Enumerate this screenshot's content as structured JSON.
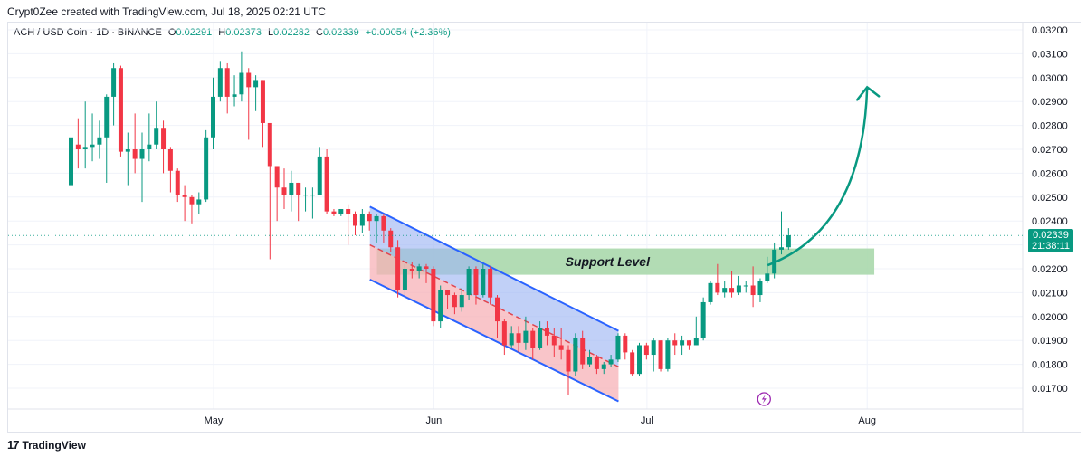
{
  "header": {
    "credit": "Crypt0Zee created with TradingView.com, Jul 18, 2025 02:21 UTC"
  },
  "legend": {
    "symbol": "ACH / USD Coin · 1D · BINANCE",
    "o_label": "O",
    "o_value": "0.02291",
    "h_label": "H",
    "h_value": "0.02373",
    "l_label": "L",
    "l_value": "0.02282",
    "c_label": "C",
    "c_value": "0.02339",
    "change": "+0.00054 (+2.36%)"
  },
  "price_badge": {
    "price": "0.02339",
    "countdown": "21:38:11"
  },
  "annotation": {
    "support_label": "Support Level"
  },
  "footer": {
    "brand": "TradingView"
  },
  "colors": {
    "up": "#089981",
    "down": "#f23645",
    "support_zone": "#a5d6a7",
    "channel_upper": "#9fb7f3",
    "channel_lower": "#f7b2b7",
    "channel_line": "#2962ff",
    "arrow": "#089981",
    "lightning": "#9c27b0"
  },
  "chart_data": {
    "type": "candlestick",
    "symbol": "ACH / USD Coin",
    "timeframe": "1D",
    "exchange": "BINANCE",
    "ylim": [
      0.0164,
      0.0322
    ],
    "y_ticks": [
      "0.03200",
      "0.03100",
      "0.03000",
      "0.02900",
      "0.02800",
      "0.02700",
      "0.02600",
      "0.02500",
      "0.02400",
      "0.02300",
      "0.02200",
      "0.02100",
      "0.02000",
      "0.01900",
      "0.01800",
      "0.01700"
    ],
    "x_ticks": [
      {
        "label": "May",
        "date": "2025-05-01"
      },
      {
        "label": "Jun",
        "date": "2025-06-01"
      },
      {
        "label": "Jul",
        "date": "2025-07-01"
      },
      {
        "label": "Aug",
        "date": "2025-08-01"
      }
    ],
    "first_date": "2025-04-11",
    "candles": [
      [
        0.0255,
        0.0275,
        0.0306,
        0.0255
      ],
      [
        0.0272,
        0.027,
        0.0283,
        0.0262
      ],
      [
        0.027,
        0.0271,
        0.029,
        0.0262
      ],
      [
        0.0271,
        0.0272,
        0.0285,
        0.0265
      ],
      [
        0.0272,
        0.0275,
        0.0282,
        0.0266
      ],
      [
        0.0275,
        0.0292,
        0.0293,
        0.0256
      ],
      [
        0.0292,
        0.0304,
        0.0306,
        0.028
      ],
      [
        0.0304,
        0.0269,
        0.0305,
        0.0267
      ],
      [
        0.0269,
        0.027,
        0.0277,
        0.0255
      ],
      [
        0.027,
        0.0266,
        0.0285,
        0.026
      ],
      [
        0.0266,
        0.027,
        0.0277,
        0.0248
      ],
      [
        0.027,
        0.0272,
        0.0285,
        0.0265
      ],
      [
        0.0272,
        0.0279,
        0.029,
        0.027
      ],
      [
        0.0279,
        0.027,
        0.0282,
        0.026
      ],
      [
        0.027,
        0.0261,
        0.0271,
        0.0252
      ],
      [
        0.0261,
        0.0251,
        0.0262,
        0.0248
      ],
      [
        0.0251,
        0.025,
        0.0255,
        0.024
      ],
      [
        0.025,
        0.0247,
        0.0251,
        0.0239
      ],
      [
        0.0247,
        0.0249,
        0.0252,
        0.0243
      ],
      [
        0.0249,
        0.0275,
        0.0278,
        0.0248
      ],
      [
        0.0275,
        0.0292,
        0.03,
        0.027
      ],
      [
        0.0292,
        0.0304,
        0.0307,
        0.029
      ],
      [
        0.0304,
        0.0292,
        0.0306,
        0.0285
      ],
      [
        0.0292,
        0.0293,
        0.0301,
        0.0288
      ],
      [
        0.0293,
        0.0302,
        0.0311,
        0.029
      ],
      [
        0.0302,
        0.0296,
        0.0304,
        0.0274
      ],
      [
        0.0296,
        0.0299,
        0.0301,
        0.0286
      ],
      [
        0.0299,
        0.0281,
        0.0299,
        0.0271
      ],
      [
        0.0281,
        0.0263,
        0.0281,
        0.0224
      ],
      [
        0.0263,
        0.0254,
        0.0263,
        0.024
      ],
      [
        0.0254,
        0.0251,
        0.0262,
        0.0245
      ],
      [
        0.0251,
        0.0256,
        0.0261,
        0.0244
      ],
      [
        0.0256,
        0.0251,
        0.0256,
        0.024
      ],
      [
        0.0251,
        0.0251,
        0.0254,
        0.0244
      ],
      [
        0.0251,
        0.0251,
        0.0254,
        0.0241
      ],
      [
        0.0251,
        0.0267,
        0.0271,
        0.0251
      ],
      [
        0.0267,
        0.0244,
        0.027,
        0.0243
      ],
      [
        0.0244,
        0.0243,
        0.0245,
        0.0242
      ],
      [
        0.0243,
        0.0245,
        0.0245,
        0.0242
      ],
      [
        0.0245,
        0.0243,
        0.0247,
        0.023
      ],
      [
        0.0243,
        0.0238,
        0.0244,
        0.0234
      ],
      [
        0.0238,
        0.0243,
        0.0245,
        0.0235
      ],
      [
        0.0243,
        0.024,
        0.0244,
        0.0236
      ],
      [
        0.024,
        0.0242,
        0.0243,
        0.0231
      ],
      [
        0.0242,
        0.0236,
        0.0243,
        0.0231
      ],
      [
        0.0236,
        0.0229,
        0.0237,
        0.0227
      ],
      [
        0.0229,
        0.0211,
        0.0232,
        0.0208
      ],
      [
        0.0211,
        0.022,
        0.0222,
        0.0209
      ],
      [
        0.022,
        0.0219,
        0.0223,
        0.0216
      ],
      [
        0.0219,
        0.0221,
        0.0222,
        0.0216
      ],
      [
        0.0221,
        0.022,
        0.0222,
        0.0214
      ],
      [
        0.022,
        0.0198,
        0.0221,
        0.0196
      ],
      [
        0.0198,
        0.0211,
        0.0213,
        0.0195
      ],
      [
        0.0211,
        0.0209,
        0.0211,
        0.0203
      ],
      [
        0.0209,
        0.0204,
        0.021,
        0.0201
      ],
      [
        0.0204,
        0.0209,
        0.0212,
        0.0202
      ],
      [
        0.0209,
        0.022,
        0.0221,
        0.0207
      ],
      [
        0.022,
        0.0209,
        0.0221,
        0.0205
      ],
      [
        0.0209,
        0.022,
        0.0222,
        0.0208
      ],
      [
        0.022,
        0.0208,
        0.0221,
        0.0205
      ],
      [
        0.0208,
        0.0198,
        0.0209,
        0.0191
      ],
      [
        0.0198,
        0.0188,
        0.0199,
        0.0184
      ],
      [
        0.0188,
        0.0193,
        0.0196,
        0.0187
      ],
      [
        0.0193,
        0.0189,
        0.0196,
        0.0185
      ],
      [
        0.0189,
        0.0194,
        0.02,
        0.0186
      ],
      [
        0.0194,
        0.0187,
        0.0195,
        0.0182
      ],
      [
        0.0187,
        0.0195,
        0.0198,
        0.0186
      ],
      [
        0.0195,
        0.0192,
        0.0198,
        0.0188
      ],
      [
        0.0192,
        0.0188,
        0.0195,
        0.0183
      ],
      [
        0.0188,
        0.0186,
        0.0195,
        0.0182
      ],
      [
        0.0186,
        0.0177,
        0.0188,
        0.0167
      ],
      [
        0.0177,
        0.0191,
        0.0193,
        0.0175
      ],
      [
        0.0191,
        0.018,
        0.0194,
        0.0178
      ],
      [
        0.018,
        0.0183,
        0.0186,
        0.0179
      ],
      [
        0.0183,
        0.0178,
        0.0184,
        0.0176
      ],
      [
        0.0178,
        0.018,
        0.0181,
        0.0176
      ],
      [
        0.018,
        0.0182,
        0.0184,
        0.0179
      ],
      [
        0.0182,
        0.0192,
        0.0193,
        0.0181
      ],
      [
        0.0192,
        0.0185,
        0.0193,
        0.0182
      ],
      [
        0.0185,
        0.0176,
        0.0186,
        0.0175
      ],
      [
        0.0176,
        0.0188,
        0.0189,
        0.0175
      ],
      [
        0.0188,
        0.0184,
        0.0189,
        0.0182
      ],
      [
        0.0184,
        0.019,
        0.0191,
        0.0177
      ],
      [
        0.019,
        0.0178,
        0.019,
        0.0177
      ],
      [
        0.0178,
        0.019,
        0.0191,
        0.0177
      ],
      [
        0.019,
        0.0188,
        0.0193,
        0.0184
      ],
      [
        0.0188,
        0.019,
        0.0192,
        0.0184
      ],
      [
        0.019,
        0.0188,
        0.019,
        0.0186
      ],
      [
        0.0188,
        0.0191,
        0.02,
        0.0188
      ],
      [
        0.0191,
        0.0206,
        0.0208,
        0.019
      ],
      [
        0.0206,
        0.0214,
        0.0215,
        0.0205
      ],
      [
        0.0214,
        0.021,
        0.0222,
        0.0209
      ],
      [
        0.021,
        0.0212,
        0.0215,
        0.0208
      ],
      [
        0.0212,
        0.021,
        0.0219,
        0.0208
      ],
      [
        0.021,
        0.0213,
        0.0217,
        0.0209
      ],
      [
        0.0213,
        0.0213,
        0.0215,
        0.021
      ],
      [
        0.0213,
        0.0209,
        0.0221,
        0.0204
      ],
      [
        0.0209,
        0.0215,
        0.0216,
        0.0206
      ],
      [
        0.0215,
        0.0218,
        0.0225,
        0.0214
      ],
      [
        0.0218,
        0.0228,
        0.0231,
        0.0216
      ],
      [
        0.0228,
        0.0229,
        0.0244,
        0.0226
      ],
      [
        0.0229,
        0.0234,
        0.0237,
        0.0228
      ]
    ],
    "candle_format": [
      "open",
      "close",
      "high",
      "low"
    ],
    "support_zone": {
      "label": "Support Level",
      "from_date": "2025-05-24",
      "to_date": "2025-08-02",
      "top": 0.02285,
      "bottom": 0.02175
    },
    "descending_channel": {
      "start_date": "2025-05-23",
      "end_date": "2025-06-27",
      "upper_start": 0.0246,
      "upper_end": 0.0194,
      "lower_start": 0.02155,
      "lower_end": 0.01645,
      "mid_start": 0.023,
      "mid_end": 0.0179
    },
    "projection_arrow": {
      "from_date": "2025-07-18",
      "from_price": 0.02215,
      "to_date": "2025-08-01",
      "to_price": 0.0296
    },
    "last_price": 0.02339
  }
}
